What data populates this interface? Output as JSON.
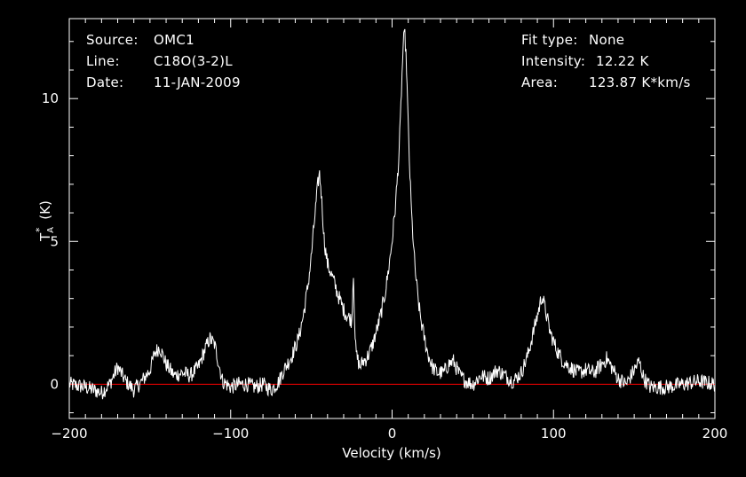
{
  "header_left": {
    "source_label": "Source:",
    "source_value": "OMC1",
    "line_label": "Line:",
    "line_value": "C18O(3-2)L",
    "date_label": "Date:",
    "date_value": "11-JAN-2009"
  },
  "header_right": {
    "fit_label": "Fit type:",
    "fit_value": "None",
    "intensity_label": "Intensity:",
    "intensity_value": "12.22 K",
    "area_label": "Area:",
    "area_value": "123.87 K*km/s"
  },
  "colors": {
    "background": "#000000",
    "foreground": "#ffffff",
    "baseline": "#ff0000"
  },
  "chart_data": {
    "type": "line",
    "title": "",
    "xlabel": "Velocity (km/s)",
    "ylabel": "T_A^* (K)",
    "xlim": [
      -200,
      200
    ],
    "ylim": [
      -1.2,
      12.8
    ],
    "xticks": [
      -200,
      -100,
      0,
      100,
      200
    ],
    "yticks": [
      0,
      5,
      10
    ],
    "baseline_y": 0,
    "grid": false,
    "series": [
      {
        "x": [
          -200,
          -190,
          -180,
          -175,
          -170,
          -165,
          -160,
          -155,
          -150,
          -147,
          -144,
          -140,
          -135,
          -130,
          -125,
          -120,
          -116,
          -113,
          -110,
          -105,
          -100,
          -95,
          -90,
          -85,
          -80,
          -75,
          -70,
          -68,
          -65,
          -62,
          -58,
          -55,
          -52,
          -50,
          -48,
          -46,
          -45,
          -44,
          -42,
          -40,
          -38,
          -36,
          -34,
          -32,
          -30,
          -28,
          -26,
          -25,
          -24,
          -23.5,
          -23,
          -22.5,
          -22,
          -21,
          -20,
          -18,
          -16,
          -14,
          -12,
          -10,
          -8,
          -6,
          -4,
          -2,
          0,
          2,
          4,
          5,
          6,
          7,
          8,
          9,
          10,
          11,
          12,
          14,
          16,
          18,
          20,
          22,
          25,
          28,
          32,
          35,
          38,
          42,
          46,
          50,
          55,
          60,
          65,
          70,
          75,
          80,
          84,
          87,
          90,
          92,
          93,
          95,
          98,
          102,
          106,
          110,
          115,
          120,
          125,
          130,
          133,
          136,
          140,
          145,
          150,
          153,
          156,
          160,
          170,
          180,
          190,
          200
        ],
        "y": [
          0.0,
          -0.1,
          -0.3,
          0.0,
          0.6,
          0.1,
          -0.2,
          0.1,
          0.5,
          1.1,
          1.3,
          0.7,
          0.3,
          0.4,
          0.3,
          0.6,
          1.2,
          1.6,
          1.4,
          0.1,
          -0.1,
          0.0,
          0.0,
          -0.1,
          0.0,
          -0.2,
          0.1,
          0.4,
          0.7,
          1.0,
          1.6,
          2.4,
          3.5,
          4.5,
          5.8,
          7.0,
          7.4,
          6.8,
          5.0,
          4.2,
          3.9,
          3.6,
          3.2,
          2.9,
          2.6,
          2.4,
          2.3,
          2.2,
          3.9,
          3.0,
          1.8,
          1.2,
          1.0,
          0.8,
          0.6,
          0.8,
          0.9,
          1.1,
          1.4,
          1.8,
          2.2,
          2.7,
          3.3,
          4.1,
          5.0,
          6.2,
          7.8,
          9.0,
          10.6,
          12.0,
          12.22,
          11.0,
          9.0,
          7.4,
          6.0,
          4.2,
          3.0,
          2.2,
          1.6,
          1.1,
          0.6,
          0.4,
          0.4,
          0.7,
          0.8,
          0.3,
          0.1,
          0.0,
          0.3,
          0.2,
          0.5,
          0.3,
          0.1,
          0.4,
          1.0,
          1.7,
          2.4,
          2.9,
          3.1,
          2.6,
          1.8,
          1.2,
          0.8,
          0.6,
          0.4,
          0.5,
          0.4,
          0.7,
          0.9,
          0.6,
          0.2,
          0.0,
          0.5,
          0.8,
          0.2,
          -0.1,
          -0.1,
          0.0,
          0.1,
          0.0
        ]
      }
    ]
  }
}
